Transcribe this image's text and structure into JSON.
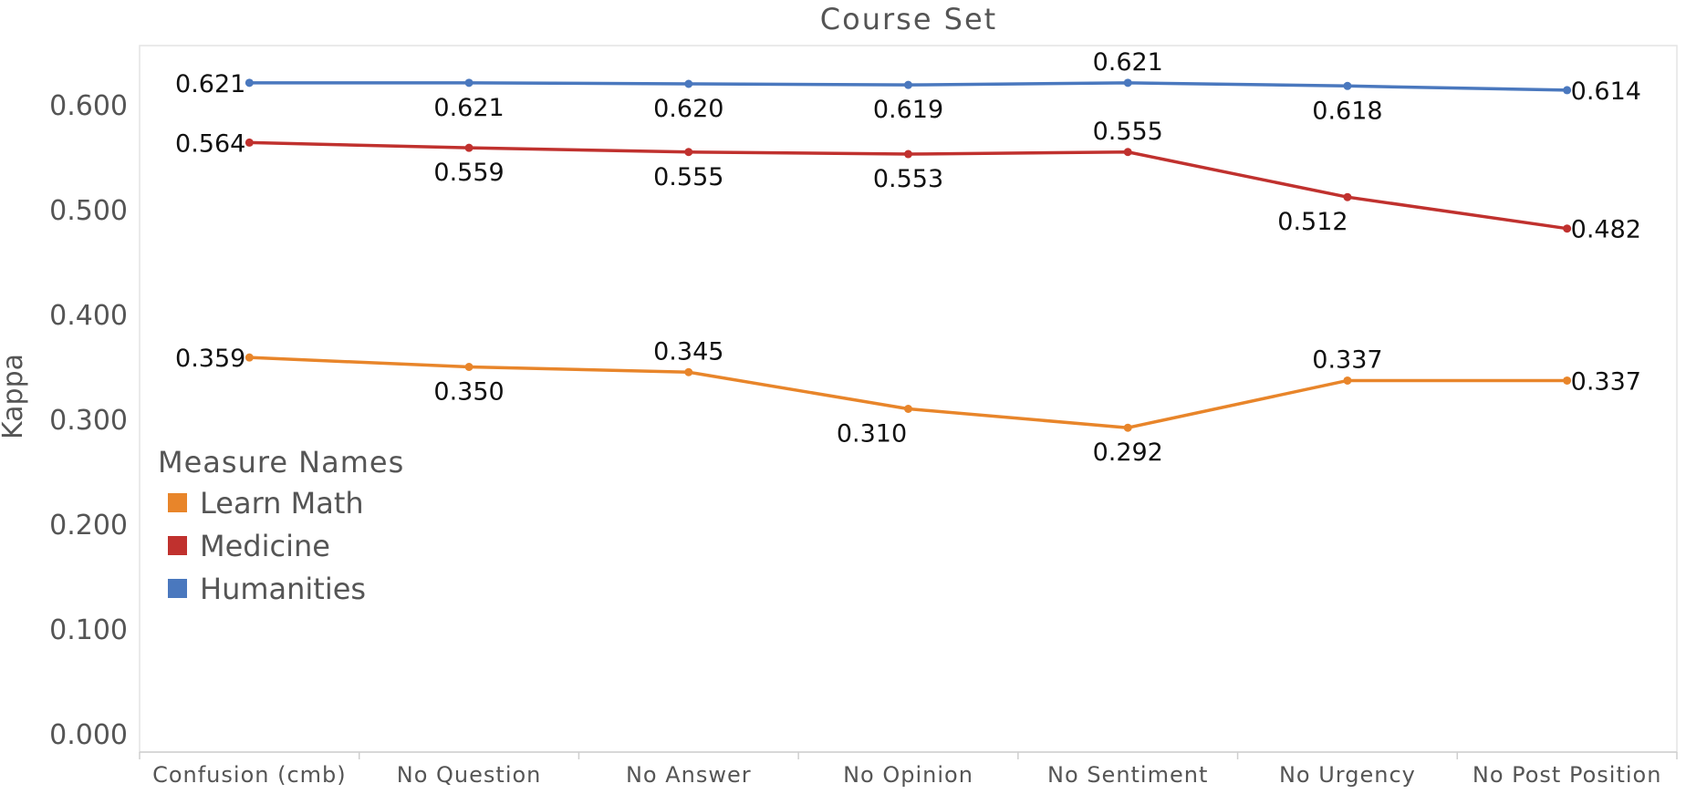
{
  "chart_data": {
    "type": "line",
    "title": "Course Set",
    "xlabel": "",
    "ylabel": "Kappa",
    "categories": [
      "Confusion (cmb)",
      "No Question",
      "No Answer",
      "No Opinion",
      "No Sentiment",
      "No Urgency",
      "No Post Position"
    ],
    "ylim": [
      0,
      0.65
    ],
    "yticks": [
      "0.000",
      "0.100",
      "0.200",
      "0.300",
      "0.400",
      "0.500",
      "0.600"
    ],
    "grid": false,
    "legend": {
      "title": "Measure Names",
      "placement": "left-middle"
    },
    "series": [
      {
        "name": "Learn Math",
        "color": "#e8852a",
        "values": [
          0.359,
          0.35,
          0.345,
          0.31,
          0.292,
          0.337,
          0.337
        ],
        "labels": [
          "0.359",
          "0.350",
          "0.345",
          "0.310",
          "0.292",
          "0.337",
          "0.337"
        ]
      },
      {
        "name": "Medicine",
        "color": "#c0312e",
        "values": [
          0.564,
          0.559,
          0.555,
          0.553,
          0.555,
          0.512,
          0.482
        ],
        "labels": [
          "0.564",
          "0.559",
          "0.555",
          "0.553",
          "0.555",
          "0.512",
          "0.482"
        ]
      },
      {
        "name": "Humanities",
        "color": "#4a78be",
        "values": [
          0.621,
          0.621,
          0.62,
          0.619,
          0.621,
          0.618,
          0.614
        ],
        "labels": [
          "0.621",
          "0.621",
          "0.620",
          "0.619",
          "0.621",
          "0.618",
          "0.614"
        ]
      }
    ]
  }
}
